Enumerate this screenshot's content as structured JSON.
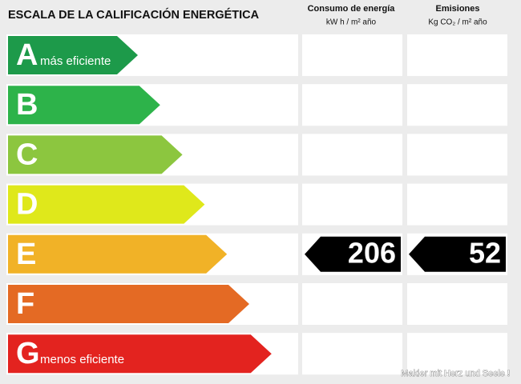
{
  "title": "ESCALA DE LA CALIFICACIÓN ENERGÉTICA",
  "columns": [
    {
      "title": "Consumo de energía",
      "unit": "kW h / m² año"
    },
    {
      "title": "Emisiones",
      "unit": "Kg CO₂ / m² año"
    }
  ],
  "rows": [
    {
      "letter": "A",
      "label": "más eficiente",
      "color": "#1d9a4a"
    },
    {
      "letter": "B",
      "color": "#2db34a"
    },
    {
      "letter": "C",
      "color": "#8cc63f"
    },
    {
      "letter": "D",
      "color": "#dfe81b"
    },
    {
      "letter": "E",
      "color": "#f1b227",
      "consumption": 206,
      "emissions": 52
    },
    {
      "letter": "F",
      "color": "#e46a24"
    },
    {
      "letter": "G",
      "label": "menos eficiente",
      "color": "#e3231f"
    }
  ],
  "footer": "Makler mit Herz und Seele !"
}
